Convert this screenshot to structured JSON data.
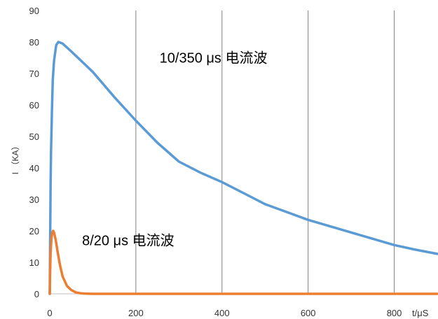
{
  "chart_data": {
    "type": "line",
    "ylabel": "I （KA）",
    "xlabel": "t/μS",
    "xlim": [
      0,
      900
    ],
    "ylim": [
      0,
      90
    ],
    "x_ticks": [
      "0",
      "200",
      "400",
      "600",
      "800"
    ],
    "y_ticks": [
      "0",
      "10",
      "20",
      "30",
      "40",
      "50",
      "60",
      "70",
      "80",
      "90"
    ],
    "grid": "vertical",
    "series": [
      {
        "color": "#5b9bd5",
        "x": [
          0,
          1,
          2,
          3,
          5,
          7,
          10,
          15,
          20,
          30,
          50,
          100,
          150,
          200,
          250,
          300,
          350,
          400,
          450,
          500,
          550,
          600,
          650,
          700,
          750,
          800,
          850,
          900
        ],
        "y": [
          0,
          18,
          35,
          45,
          58,
          68,
          74,
          79,
          80,
          79.5,
          77,
          70.5,
          62.5,
          55,
          48,
          42,
          38.5,
          35.5,
          32,
          28.5,
          26,
          23.5,
          21.5,
          19.5,
          17.5,
          15.5,
          14,
          12.7
        ]
      },
      {
        "color": "#ed7d31",
        "x": [
          0,
          1,
          2,
          4,
          6,
          8,
          10,
          14,
          18,
          24,
          30,
          40,
          50,
          60,
          70,
          80,
          100,
          200,
          400,
          600,
          800,
          900
        ],
        "y": [
          0,
          8,
          13,
          18,
          19.5,
          20,
          19.5,
          17,
          13.5,
          9,
          5.5,
          2.5,
          1.2,
          0.5,
          0.2,
          0.1,
          0,
          0,
          0,
          0,
          0,
          0
        ]
      }
    ],
    "annotations": [
      {
        "text": "10/350 μs 电流波",
        "x": 255,
        "y": 73.5
      },
      {
        "text": "8/20 μs 电流波",
        "x": 75,
        "y": 15.5
      }
    ]
  }
}
